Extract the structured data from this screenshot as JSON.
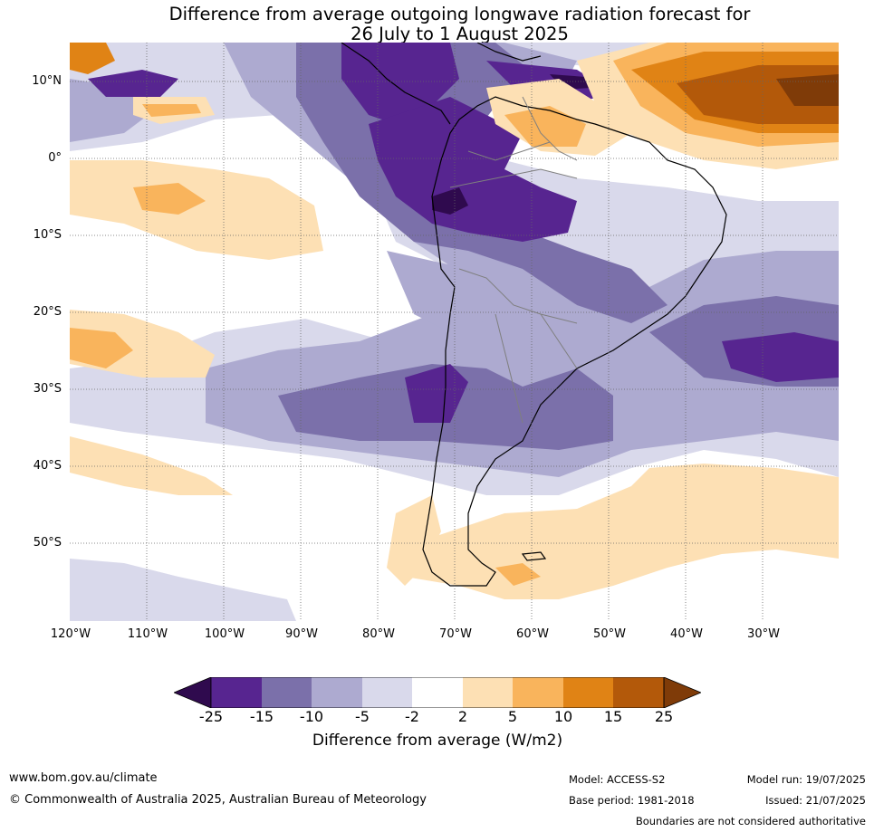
{
  "title": {
    "line1": "Difference from average outgoing longwave radiation forecast for",
    "line2": "26 July to 1 August 2025"
  },
  "map": {
    "lat_labels": [
      "10°N",
      "0°",
      "10°S",
      "20°S",
      "30°S",
      "40°S",
      "50°S"
    ],
    "lon_labels": [
      "120°W",
      "110°W",
      "100°W",
      "90°W",
      "80°W",
      "70°W",
      "60°W",
      "50°W",
      "40°W",
      "30°W"
    ],
    "colors": {
      "lt_-25": "#2f0a4e",
      "-25_-15": "#572590",
      "-15_-10": "#7b70aa",
      "-10_-5": "#adaad0",
      "-5_-2": "#d9d9eb",
      "-2_2": "#ffffff",
      "2_5": "#fde0b4",
      "5_10": "#f9b45c",
      "10_15": "#e08315",
      "15_25": "#b3590a",
      "gt_25": "#7f3b08"
    }
  },
  "colorbar": {
    "ticks": [
      "-25",
      "-15",
      "-10",
      "-5",
      "-2",
      "2",
      "5",
      "10",
      "15",
      "25"
    ],
    "label": "Difference from average (W/m2)"
  },
  "footer": {
    "website": "www.bom.gov.au/climate",
    "copyright": "© Commonwealth of Australia 2025, Australian Bureau of Meteorology",
    "model": "Model: ACCESS-S2",
    "base_period": "Base period: 1981-2018",
    "model_run": "Model run: 19/07/2025",
    "issued": "Issued: 21/07/2025",
    "disclaimer": "Boundaries are not considered authoritative"
  }
}
